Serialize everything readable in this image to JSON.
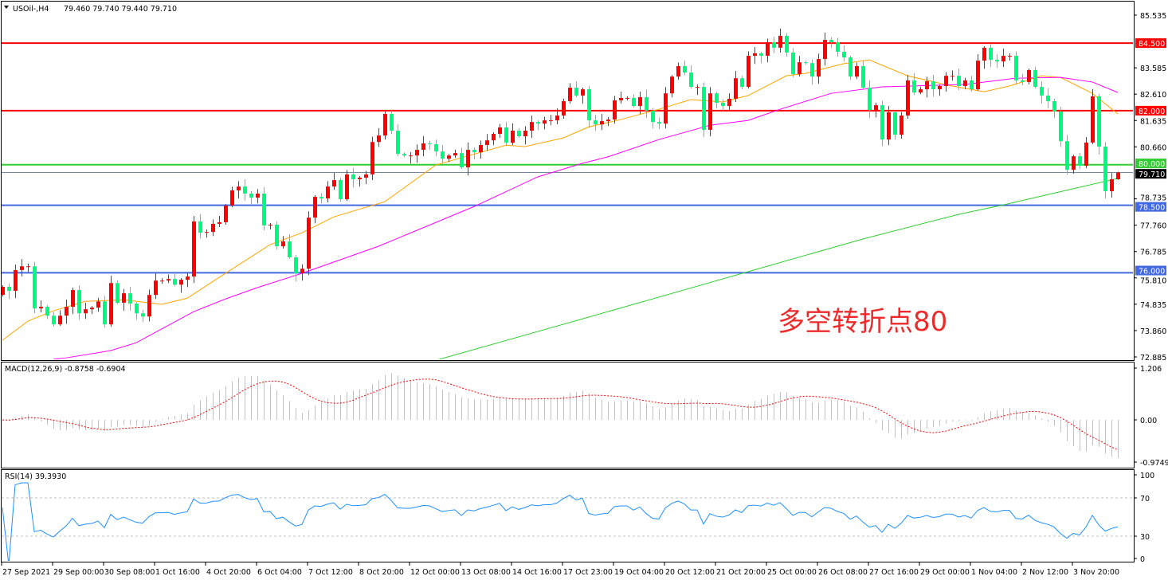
{
  "header": {
    "symbol": "USOil-,H4",
    "ohlc": "79.460 79.740 79.440 79.710",
    "dropdown_icon": "triangle-down-icon"
  },
  "annotation": "多空转折点80",
  "macd_label": "MACD(12,26,9) -0.8758 -0.6904",
  "rsi_label": "RSI(14) 39.3930",
  "chart_data": {
    "type": "candlestick",
    "symbol": "USOil-",
    "timeframe": "H4",
    "last_bar": {
      "open": 79.46,
      "high": 79.74,
      "low": 79.44,
      "close": 79.71
    },
    "up_color": "#ff0000",
    "down_color": "#00fa7f",
    "ylim": [
      72.885,
      85.535
    ],
    "y_ticks": [
      "85.535",
      "83.585",
      "82.610",
      "81.635",
      "80.660",
      "78.735",
      "77.760",
      "76.785",
      "75.810",
      "74.835",
      "73.860",
      "72.885"
    ],
    "x_tick_labels": [
      "27 Sep 2021",
      "29 Sep 00:00",
      "30 Sep 08:00",
      "1 Oct 16:00",
      "4 Oct 20:00",
      "6 Oct 04:00",
      "7 Oct 12:00",
      "8 Oct 20:00",
      "12 Oct 00:00",
      "13 Oct 08:00",
      "14 Oct 16:00",
      "17 Oct 23:00",
      "19 Oct 04:00",
      "20 Oct 12:00",
      "21 Oct 20:00",
      "25 Oct 00:00",
      "26 Oct 08:00",
      "27 Oct 16:00",
      "29 Oct 00:00",
      "1 Nov 04:00",
      "2 Nov 12:00",
      "3 Nov 20:00"
    ],
    "closes": [
      75.48,
      75.33,
      76.1,
      76.24,
      76.24,
      74.68,
      74.74,
      74.41,
      74.09,
      74.41,
      74.74,
      75.36,
      74.5,
      74.65,
      74.71,
      74.94,
      74.09,
      75.62,
      74.89,
      75.24,
      74.86,
      74.5,
      74.38,
      75.18,
      75.71,
      75.71,
      75.77,
      75.56,
      75.74,
      75.86,
      77.9,
      77.48,
      77.51,
      77.81,
      77.87,
      78.49,
      79.05,
      79.19,
      78.93,
      78.78,
      78.93,
      77.75,
      77.78,
      76.98,
      77.16,
      76.57,
      75.98,
      76.15,
      78.04,
      78.81,
      78.75,
      79.19,
      79.43,
      78.72,
      79.64,
      79.46,
      79.52,
      79.64,
      80.84,
      81.08,
      81.88,
      81.26,
      80.4,
      80.34,
      80.34,
      80.55,
      80.79,
      80.76,
      80.49,
      80.22,
      80.34,
      80.43,
      79.9,
      80.55,
      80.46,
      80.73,
      80.9,
      81.14,
      81.38,
      80.81,
      81.26,
      81.05,
      81.26,
      81.58,
      81.52,
      81.64,
      81.64,
      81.82,
      82.35,
      82.85,
      82.56,
      82.79,
      81.64,
      81.49,
      81.61,
      81.67,
      82.38,
      82.47,
      82.47,
      82.17,
      82.5,
      82.0,
      81.58,
      81.52,
      82.64,
      83.26,
      83.65,
      83.41,
      82.88,
      82.88,
      81.29,
      82.64,
      82.29,
      82.17,
      82.44,
      83.2,
      82.88,
      84.03,
      84.12,
      84.03,
      84.53,
      84.33,
      84.77,
      84.15,
      83.35,
      83.79,
      83.76,
      83.26,
      83.91,
      84.62,
      84.53,
      84.18,
      83.97,
      83.26,
      83.65,
      82.85,
      82.02,
      82.2,
      80.93,
      81.94,
      81.11,
      81.82,
      83.12,
      82.67,
      82.79,
      83.09,
      82.79,
      82.91,
      83.29,
      83.29,
      82.91,
      83.12,
      82.79,
      83.85,
      84.33,
      83.88,
      83.82,
      84.03,
      84.03,
      83.12,
      83.06,
      83.5,
      82.88,
      82.56,
      82.35,
      81.97,
      80.87,
      79.81,
      80.31,
      79.96,
      80.82,
      82.53,
      80.67,
      79.02,
      79.46,
      79.71
    ],
    "moving_averages": [
      {
        "color": "#ffa500",
        "points": [
          [
            0,
            73.5
          ],
          [
            4,
            74.21
          ],
          [
            8,
            74.59
          ],
          [
            13,
            74.94
          ],
          [
            19,
            75.0
          ],
          [
            25,
            74.83
          ],
          [
            29,
            75.06
          ],
          [
            35,
            75.98
          ],
          [
            42,
            77.04
          ],
          [
            47,
            77.48
          ],
          [
            52,
            78.07
          ],
          [
            60,
            78.63
          ],
          [
            68,
            79.99
          ],
          [
            79,
            80.72
          ],
          [
            82,
            80.67
          ],
          [
            88,
            80.99
          ],
          [
            92,
            81.4
          ],
          [
            97,
            81.67
          ],
          [
            103,
            82.05
          ],
          [
            108,
            82.41
          ],
          [
            113,
            82.32
          ],
          [
            117,
            82.56
          ],
          [
            123,
            83.29
          ],
          [
            126,
            83.38
          ],
          [
            132,
            83.74
          ],
          [
            136,
            83.88
          ],
          [
            142,
            83.29
          ],
          [
            149,
            82.91
          ],
          [
            154,
            82.7
          ],
          [
            158,
            82.91
          ],
          [
            163,
            83.29
          ],
          [
            166,
            83.23
          ],
          [
            171,
            82.64
          ],
          [
            175,
            81.88
          ]
        ]
      },
      {
        "color": "#ff00ff",
        "points": [
          [
            8,
            72.8
          ],
          [
            10,
            72.85
          ],
          [
            17,
            73.12
          ],
          [
            21,
            73.41
          ],
          [
            30,
            74.56
          ],
          [
            35,
            75.03
          ],
          [
            40,
            75.45
          ],
          [
            47,
            75.98
          ],
          [
            59,
            76.98
          ],
          [
            74,
            78.45
          ],
          [
            84,
            79.55
          ],
          [
            91,
            80.05
          ],
          [
            95,
            80.29
          ],
          [
            103,
            80.93
          ],
          [
            111,
            81.46
          ],
          [
            117,
            81.64
          ],
          [
            122,
            82.05
          ],
          [
            130,
            82.64
          ],
          [
            138,
            82.88
          ],
          [
            151,
            82.97
          ],
          [
            159,
            83.2
          ],
          [
            166,
            83.23
          ],
          [
            171,
            83.06
          ],
          [
            175,
            82.67
          ]
        ]
      },
      {
        "color": "#32cd32",
        "points": [
          [
            68,
            72.76
          ],
          [
            92,
            74.36
          ],
          [
            117,
            76.04
          ],
          [
            135,
            77.25
          ],
          [
            150,
            78.16
          ],
          [
            157,
            78.51
          ],
          [
            175,
            79.49
          ]
        ]
      }
    ],
    "levels": [
      {
        "price": 84.5,
        "label": "84.500",
        "color": "#ff0000"
      },
      {
        "price": 82.0,
        "label": "82.000",
        "color": "#ff0000"
      },
      {
        "price": 80.0,
        "label": "80.000",
        "color": "#32cd32"
      },
      {
        "price": 78.5,
        "label": "78.500",
        "color": "#4169e1"
      },
      {
        "price": 76.0,
        "label": "76.000",
        "color": "#4169e1"
      }
    ],
    "current_price": {
      "price": 79.71,
      "label": "79.710",
      "color": "#000000",
      "line_color": "#778899"
    },
    "macd": {
      "fast": 12,
      "slow": 26,
      "signal": 9,
      "main": -0.8758,
      "signal_value": -0.6904,
      "y_ticks": [
        "1.206",
        "0.00",
        "-0.9749"
      ],
      "ylim": [
        -0.9749,
        1.206
      ],
      "hist_color": "#c0c0c0",
      "signal_color": "#ff0000"
    },
    "rsi": {
      "period": 14,
      "value": 39.393,
      "y_ticks": [
        "100",
        "70",
        "30",
        "0"
      ],
      "levels": [
        70,
        30
      ],
      "line_color": "#1e90ff"
    }
  }
}
